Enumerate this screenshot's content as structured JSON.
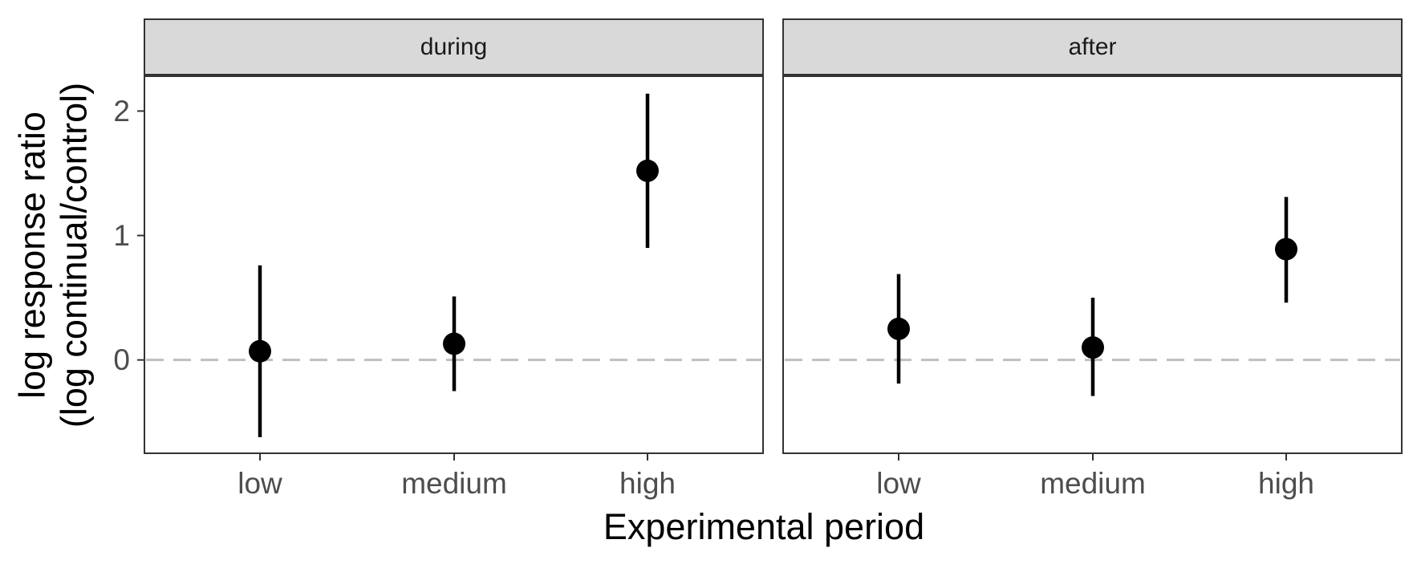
{
  "chart_data": {
    "type": "scatter",
    "subtype": "point-range-faceted",
    "title": "",
    "xlabel": "Experimental period",
    "ylabel_lines": [
      "log response ratio",
      "(log continual/control)"
    ],
    "categories": [
      "low",
      "medium",
      "high"
    ],
    "y_ticks": [
      0,
      1,
      2
    ],
    "ylim": [
      -0.75,
      2.28
    ],
    "reference_line": {
      "y": 0,
      "style": "dashed",
      "color": "#bfbfbf"
    },
    "grid": false,
    "legend": "none",
    "panels": [
      {
        "name": "during",
        "points": [
          {
            "x": "low",
            "y": 0.07,
            "lower": -0.62,
            "upper": 0.76
          },
          {
            "x": "medium",
            "y": 0.13,
            "lower": -0.25,
            "upper": 0.51
          },
          {
            "x": "high",
            "y": 1.52,
            "lower": 0.9,
            "upper": 2.14
          }
        ]
      },
      {
        "name": "after",
        "points": [
          {
            "x": "low",
            "y": 0.25,
            "lower": -0.19,
            "upper": 0.69
          },
          {
            "x": "medium",
            "y": 0.1,
            "lower": -0.29,
            "upper": 0.5
          },
          {
            "x": "high",
            "y": 0.89,
            "lower": 0.46,
            "upper": 1.31
          }
        ]
      }
    ],
    "colors": {
      "point": "#000000",
      "strip_fill": "#d9d9d9",
      "frame": "#333333"
    }
  }
}
